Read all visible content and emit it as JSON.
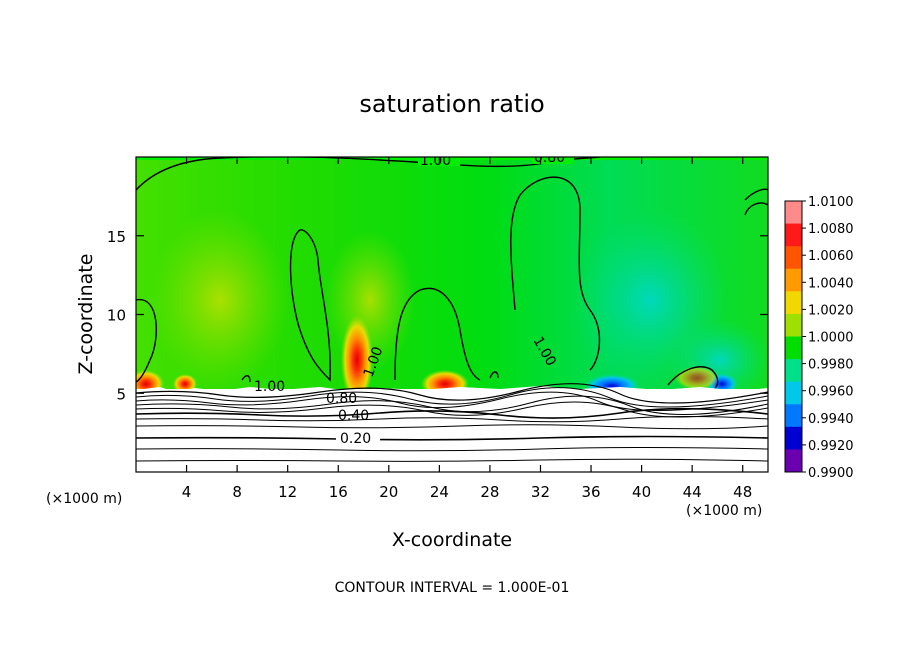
{
  "chart_data": {
    "type": "heatmap",
    "title": "saturation ratio",
    "xlabel": "X-coordinate",
    "ylabel": "Z-coordinate",
    "x_unit_left": "(×1000 m)",
    "x_unit_right": "(×1000 m)",
    "footer": "CONTOUR INTERVAL = 1.000E-01",
    "xlim": [
      0,
      50
    ],
    "ylim": [
      0,
      20
    ],
    "x_ticks": [
      4,
      8,
      12,
      16,
      20,
      24,
      28,
      32,
      36,
      40,
      44,
      48
    ],
    "x_tick_labels": [
      "4",
      "8",
      "12",
      "16",
      "20",
      "24",
      "28",
      "32",
      "36",
      "40",
      "44",
      "48"
    ],
    "y_ticks": [
      5,
      10,
      15
    ],
    "y_tick_labels": [
      "5",
      "10",
      "15"
    ],
    "colorbar": {
      "min": 0.99,
      "max": 1.01,
      "labels": [
        "1.0100",
        "1.0080",
        "1.0060",
        "1.0040",
        "1.0020",
        "1.0000",
        "0.9980",
        "0.9960",
        "0.9940",
        "0.9920",
        "0.9900"
      ],
      "colors": [
        "#ff8a8a",
        "#ff1a1a",
        "#ff5500",
        "#ff9a00",
        "#f0d800",
        "#a0e000",
        "#00dd00",
        "#00e08a",
        "#00c8e8",
        "#0078ff",
        "#0000d0",
        "#6a00b0"
      ]
    },
    "contour_labels": [
      "1.00",
      "0.80",
      "1.00",
      "1.00",
      "1.00",
      "0.80",
      "0.40",
      "0.20"
    ],
    "cloud_base_z": 5.3,
    "hot_spots": [
      {
        "x": 0.8,
        "z": 5.6,
        "value": 1.008
      },
      {
        "x": 17.5,
        "z": 6.5,
        "value": 1.008
      },
      {
        "x": 24.5,
        "z": 5.6,
        "value": 1.007
      }
    ],
    "cold_spots": [
      {
        "x": 39,
        "z": 5.6,
        "value": 0.993
      },
      {
        "x": 45,
        "z": 5.6,
        "value": 0.995
      }
    ]
  }
}
